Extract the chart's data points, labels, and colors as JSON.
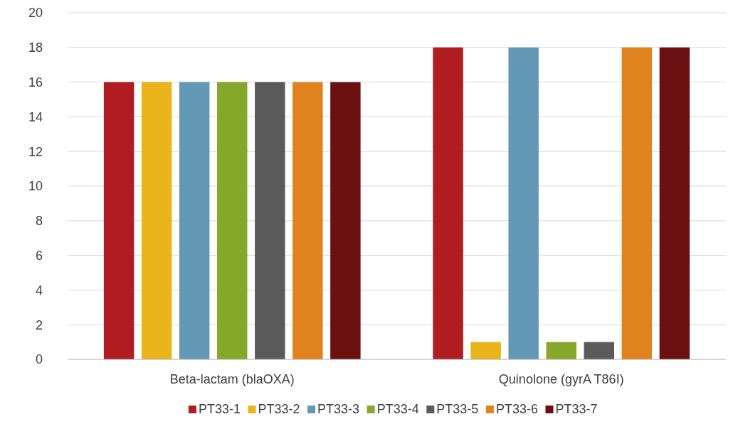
{
  "chart_data": {
    "type": "bar",
    "categories": [
      "Beta-lactam (blaOXA)",
      "Quinolone (gyrA T86I)"
    ],
    "series": [
      {
        "name": "PT33-1",
        "color": "#b01c20",
        "values": [
          16,
          18
        ]
      },
      {
        "name": "PT33-2",
        "color": "#e9b51a",
        "values": [
          16,
          1
        ]
      },
      {
        "name": "PT33-3",
        "color": "#6399b5",
        "values": [
          16,
          18
        ]
      },
      {
        "name": "PT33-4",
        "color": "#86a82a",
        "values": [
          16,
          1
        ]
      },
      {
        "name": "PT33-5",
        "color": "#5a5a5a",
        "values": [
          16,
          1
        ]
      },
      {
        "name": "PT33-6",
        "color": "#e0831f",
        "values": [
          16,
          18
        ]
      },
      {
        "name": "PT33-7",
        "color": "#6a1010",
        "values": [
          16,
          18
        ]
      }
    ],
    "ylim": [
      0,
      20
    ],
    "yticks": [
      0,
      2,
      4,
      6,
      8,
      10,
      12,
      14,
      16,
      18,
      20
    ],
    "grid": "y",
    "legend": "bottom"
  }
}
